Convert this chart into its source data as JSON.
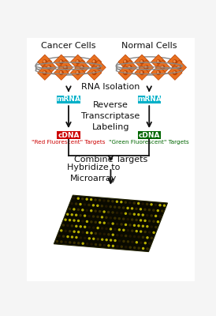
{
  "bg_color": "#f5f5f5",
  "title_cancer": "Cancer Cells",
  "title_normal": "Normal Cells",
  "rna_label": "RNA Isolation",
  "rt_label": "Reverse\nTranscriptase\nLabeling",
  "combine_label": "Combine Targets",
  "hybridize_label": "Hybridize to\nMicroarray",
  "mrna_label": "mRNA",
  "cdna_label": "cDNA",
  "red_target_label": "\"Red Fluorescent\" Targets",
  "green_target_label": "\"Green Fluorescent\" Targets",
  "mrna_box_color": "#00b0c8",
  "cdna_red_color": "#cc0000",
  "cdna_green_color": "#006600",
  "arrow_color": "#111111",
  "text_color": "#111111",
  "red_text_color": "#cc0000",
  "green_text_color": "#006600",
  "cell_fill_orange": "#e87020",
  "cell_fill_light": "#f8a060",
  "cell_fill_dark": "#b84000",
  "dish_fill": "#ffffff",
  "dish_edge": "#888888",
  "microarray_dark": "#0a0a00",
  "microarray_yellow": "#b8b000",
  "microarray_dim": "#3a3000"
}
